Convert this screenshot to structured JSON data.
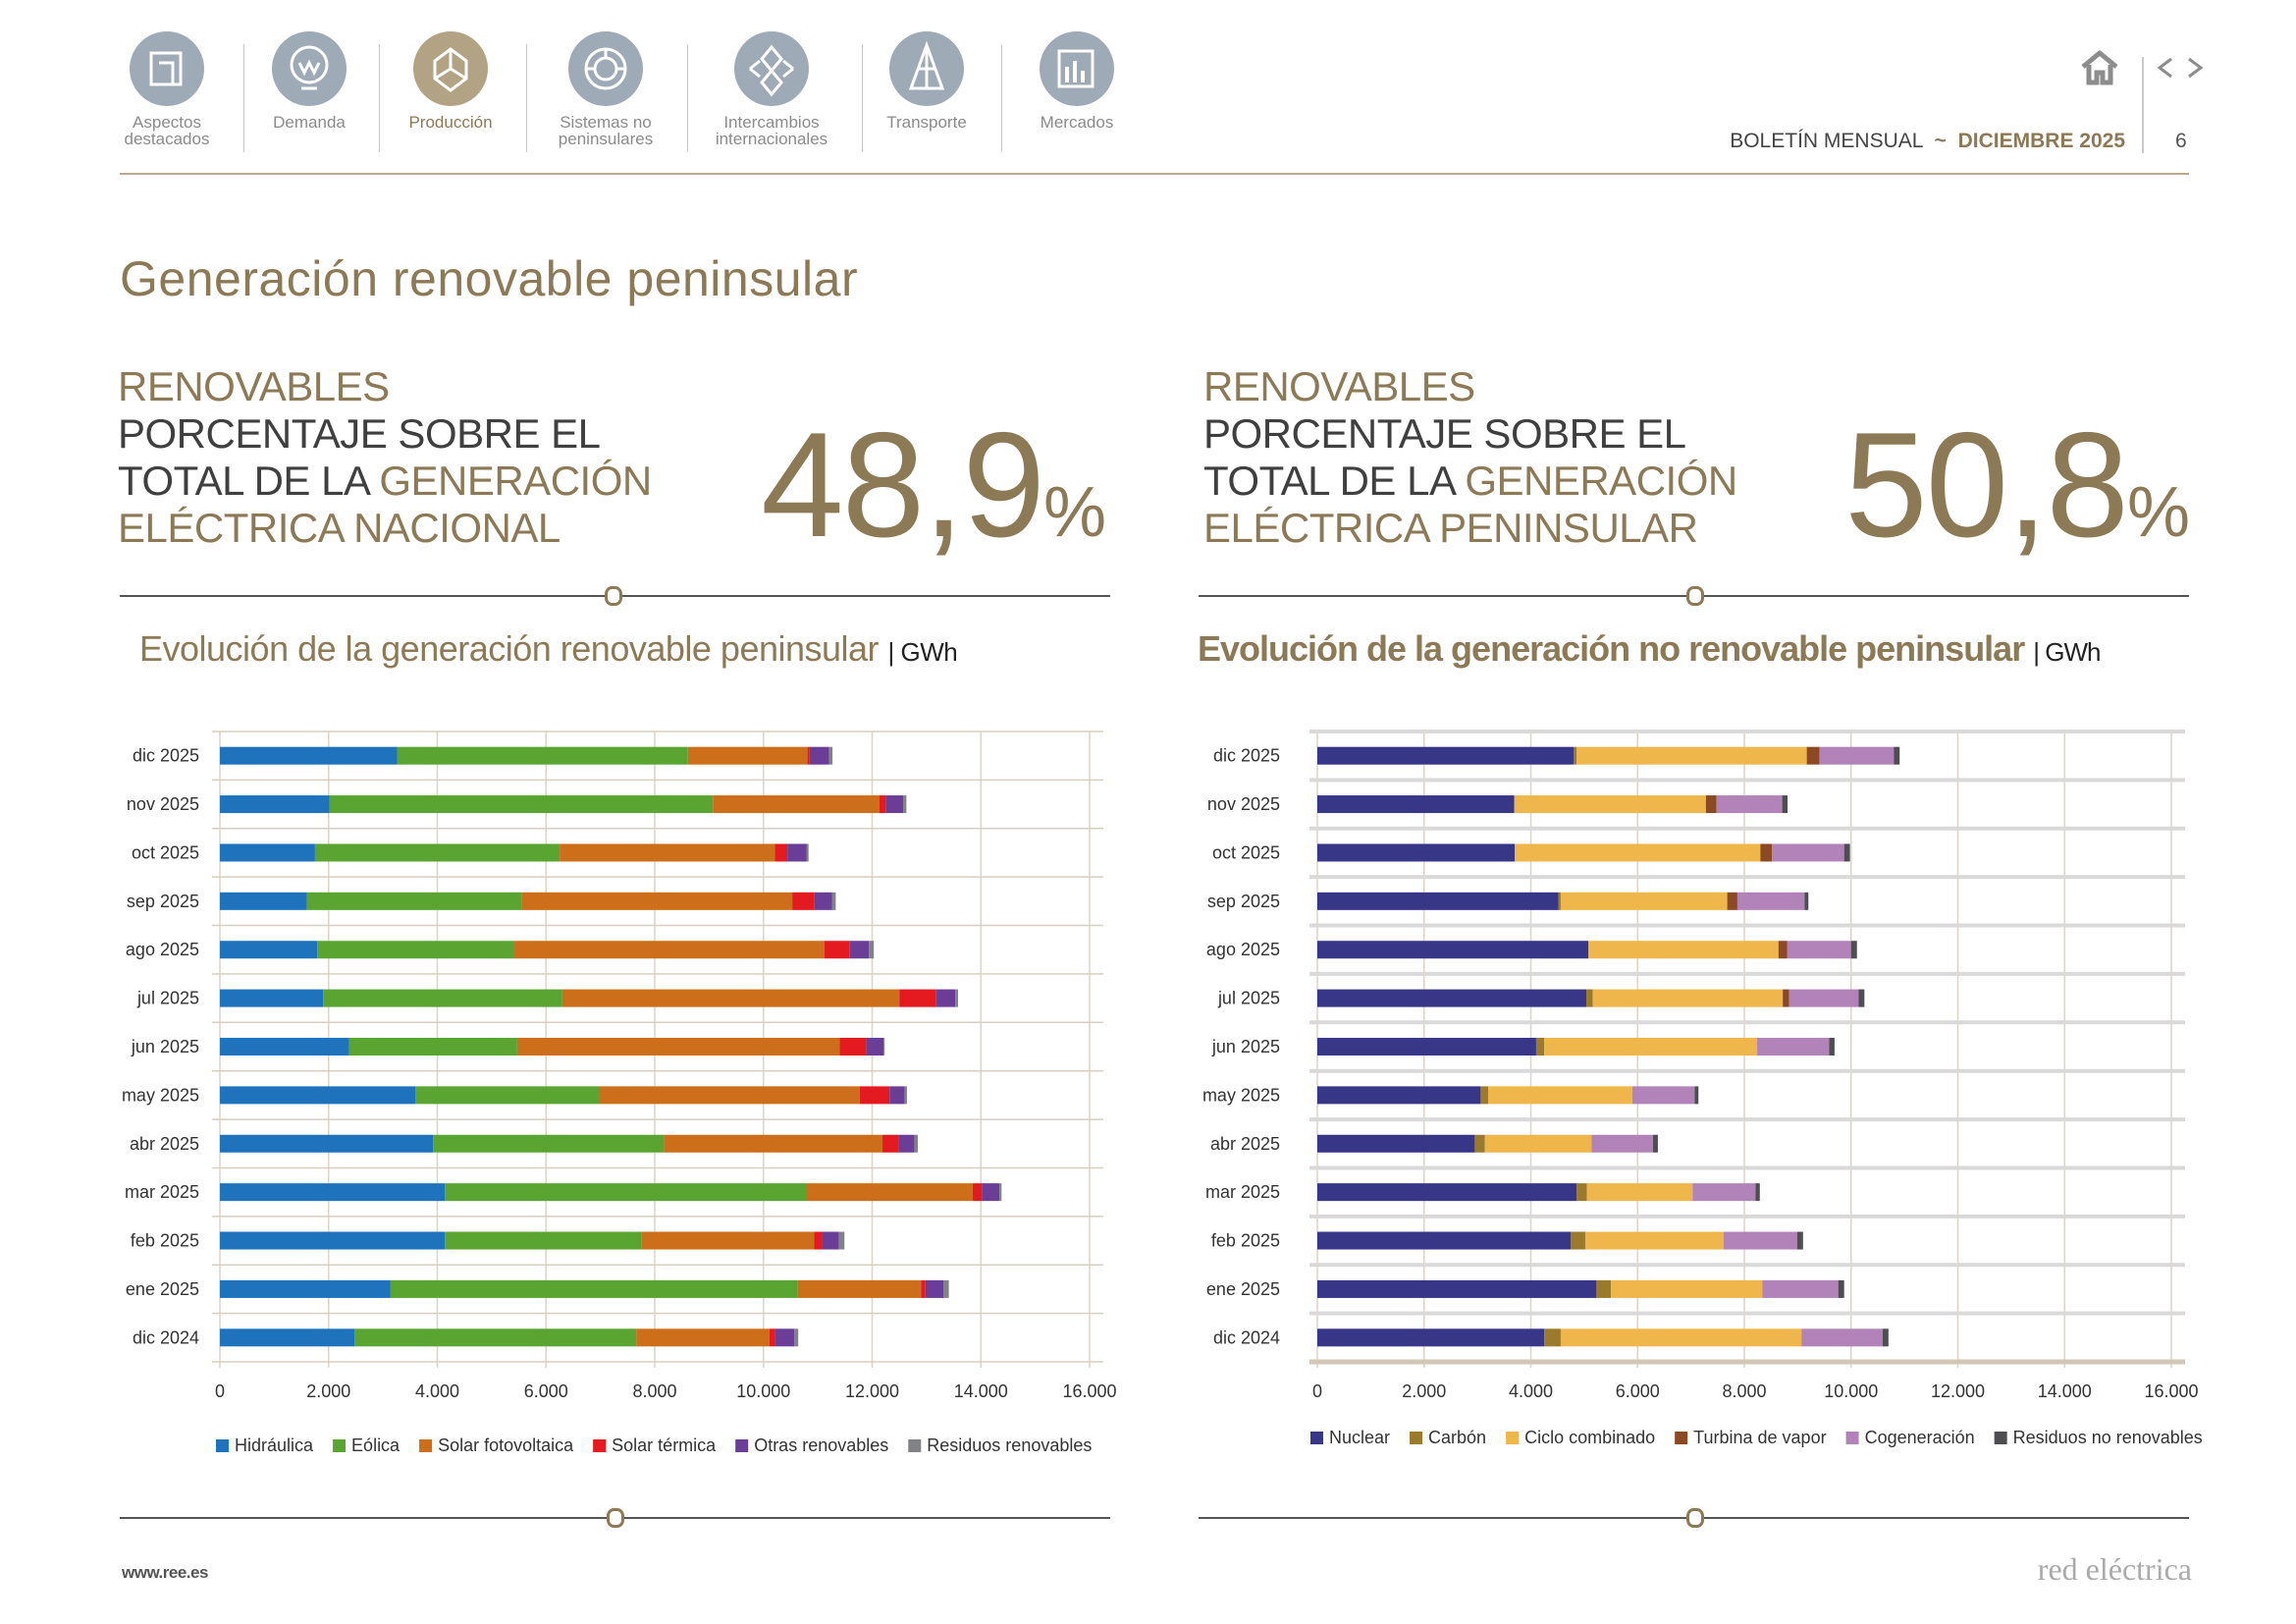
{
  "nav": [
    {
      "label1": "Aspectos",
      "label2": "destacados",
      "icon": "document-corner-icon",
      "active": false
    },
    {
      "label1": "Demanda",
      "label2": "",
      "icon": "lightbulb-icon",
      "active": false
    },
    {
      "label1": "Producción",
      "label2": "",
      "icon": "cube-icon",
      "active": true
    },
    {
      "label1": "Sistemas no",
      "label2": "peninsulares",
      "icon": "island-circle-icon",
      "active": false
    },
    {
      "label1": "Intercambios",
      "label2": "internacionales",
      "icon": "exchange-diamond-icon",
      "active": false
    },
    {
      "label1": "Transporte",
      "label2": "",
      "icon": "tower-icon",
      "active": false
    },
    {
      "label1": "Mercados",
      "label2": "",
      "icon": "bar-chart-icon",
      "active": false
    }
  ],
  "header": {
    "bulletin": "BOLETÍN MENSUAL",
    "separator": "~",
    "month": "DICIEMBRE 2025",
    "page": "6",
    "home_icon": "home-icon",
    "prev_icon": "chevron-left-icon",
    "next_icon": "chevron-right-icon"
  },
  "page_title": "Generación renovable peninsular",
  "kpis": [
    {
      "l1": "RENOVABLES",
      "l2": "PORCENTAJE SOBRE EL",
      "l3a": "TOTAL DE LA ",
      "l3b": "GENERACIÓN",
      "l4": "ELÉCTRICA NACIONAL",
      "value": "48,9",
      "unit": "%"
    },
    {
      "l1": "RENOVABLES",
      "l2": "PORCENTAJE SOBRE EL",
      "l3a": "TOTAL DE LA ",
      "l3b": "GENERACIÓN",
      "l4": "ELÉCTRICA PENINSULAR",
      "value": "50,8",
      "unit": "%"
    }
  ],
  "footer": {
    "url": "www.ree.es",
    "brand": "red eléctrica"
  },
  "colors": {
    "accent": "#8c7a57",
    "rule": "#b9a88a"
  },
  "chart_data": [
    {
      "type": "bar",
      "orientation": "horizontal",
      "stacked": true,
      "title": "Evolución de la generación renovable peninsular",
      "unit": "GWh",
      "categories": [
        "dic 2025",
        "nov 2025",
        "oct 2025",
        "sep 2025",
        "ago 2025",
        "jul 2025",
        "jun 2025",
        "may 2025",
        "abr 2025",
        "mar 2025",
        "feb 2025",
        "ene 2025",
        "dic 2024"
      ],
      "xlim": [
        0,
        16000
      ],
      "xticks": [
        0,
        2000,
        4000,
        6000,
        8000,
        10000,
        12000,
        14000,
        16000
      ],
      "xtick_labels": [
        "0",
        "2.000",
        "4.000",
        "6.000",
        "8.000",
        "10.000",
        "12.000",
        "14.000",
        "16.000"
      ],
      "grid": true,
      "legend": "bottom",
      "series": [
        {
          "name": "Hidráulica",
          "color": "#1f73bc",
          "values": [
            3260,
            2020,
            1750,
            1600,
            1790,
            1900,
            2380,
            3600,
            3920,
            4140,
            4140,
            3140,
            2480
          ]
        },
        {
          "name": "Eólica",
          "color": "#5aa532",
          "values": [
            5350,
            7050,
            4500,
            3960,
            3610,
            4400,
            3090,
            3380,
            4250,
            6650,
            3610,
            7490,
            5180
          ]
        },
        {
          "name": "Solar fotovoltaica",
          "color": "#cc6e1a",
          "values": [
            2200,
            3060,
            3960,
            4970,
            5720,
            6200,
            5930,
            4790,
            4020,
            3060,
            3180,
            2270,
            2450
          ]
        },
        {
          "name": "Solar térmica",
          "color": "#e31a1f",
          "values": [
            40,
            120,
            230,
            400,
            460,
            670,
            490,
            550,
            290,
            170,
            150,
            80,
            100
          ]
        },
        {
          "name": "Otras renovables",
          "color": "#6a3e96",
          "values": [
            360,
            320,
            350,
            330,
            360,
            360,
            320,
            280,
            300,
            320,
            310,
            330,
            360
          ]
        },
        {
          "name": "Residuos renovables",
          "color": "#808285",
          "values": [
            60,
            60,
            40,
            70,
            90,
            50,
            20,
            40,
            60,
            40,
            100,
            100,
            70
          ]
        }
      ]
    },
    {
      "type": "bar",
      "orientation": "horizontal",
      "stacked": true,
      "title": "Evolución de la generación no renovable peninsular",
      "unit": "GWh",
      "categories": [
        "dic 2025",
        "nov 2025",
        "oct 2025",
        "sep 2025",
        "ago 2025",
        "jul 2025",
        "jun 2025",
        "may 2025",
        "abr 2025",
        "mar 2025",
        "feb 2025",
        "ene 2025",
        "dic 2024"
      ],
      "xlim": [
        0,
        16000
      ],
      "xticks": [
        0,
        2000,
        4000,
        6000,
        8000,
        10000,
        12000,
        14000,
        16000
      ],
      "xtick_labels": [
        "0",
        "2.000",
        "4.000",
        "6.000",
        "8.000",
        "10.000",
        "12.000",
        "14.000",
        "16.000"
      ],
      "grid": true,
      "legend": "bottom",
      "series": [
        {
          "name": "Nuclear",
          "color": "#373687",
          "values": [
            4800,
            3690,
            3700,
            4520,
            5080,
            5040,
            4100,
            3060,
            2950,
            4860,
            4750,
            5230,
            4250
          ]
        },
        {
          "name": "Carbón",
          "color": "#9b7a2c",
          "values": [
            60,
            0,
            0,
            40,
            0,
            120,
            150,
            140,
            190,
            190,
            270,
            270,
            310
          ]
        },
        {
          "name": "Ciclo combinado",
          "color": "#efb64c",
          "values": [
            4310,
            3590,
            4600,
            3120,
            3560,
            3560,
            3990,
            2700,
            2000,
            1980,
            2590,
            2840,
            4510
          ]
        },
        {
          "name": "Turbina de vapor",
          "color": "#8c4a24",
          "values": [
            240,
            200,
            220,
            190,
            160,
            120,
            0,
            0,
            0,
            0,
            0,
            0,
            0
          ]
        },
        {
          "name": "Cogeneración",
          "color": "#b283b8",
          "values": [
            1390,
            1230,
            1350,
            1260,
            1200,
            1300,
            1350,
            1170,
            1150,
            1180,
            1380,
            1420,
            1520
          ]
        },
        {
          "name": "Residuos no renovables",
          "color": "#4d4d52",
          "values": [
            110,
            100,
            110,
            70,
            110,
            110,
            100,
            70,
            90,
            80,
            110,
            110,
            110
          ]
        }
      ]
    }
  ]
}
